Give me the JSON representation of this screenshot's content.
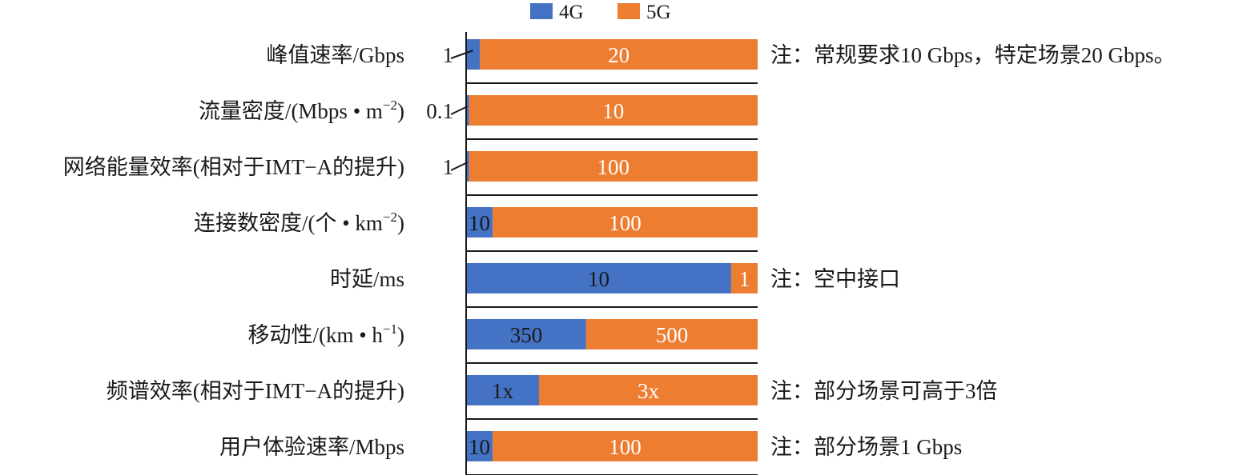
{
  "chart_data": {
    "type": "bar",
    "orientation": "horizontal",
    "stacked": "percent",
    "legend_position": "top",
    "grid": false,
    "series": [
      {
        "name": "4G",
        "color": "#4472c4",
        "values": [
          1,
          0.1,
          1,
          10,
          10,
          350,
          1,
          10
        ],
        "labels": [
          "1",
          "0.1",
          "1",
          "10",
          "10",
          "350",
          "1x",
          "10"
        ]
      },
      {
        "name": "5G",
        "color": "#ed7d31",
        "values": [
          20,
          10,
          100,
          100,
          1,
          500,
          3,
          100
        ],
        "labels": [
          "20",
          "10",
          "100",
          "100",
          "1",
          "500",
          "3x",
          "100"
        ]
      }
    ],
    "categories": [
      {
        "main": "峰值速率/Gbps",
        "sup": "",
        "tail": ""
      },
      {
        "main": "流量密度/(Mbps • m",
        "sup": "−2",
        "tail": ")"
      },
      {
        "main": "网络能量效率(相对于IMT−A的提升)",
        "sup": "",
        "tail": ""
      },
      {
        "main": "连接数密度/(个 • km",
        "sup": "−2",
        "tail": ")"
      },
      {
        "main": "时延/ms",
        "sup": "",
        "tail": ""
      },
      {
        "main": "移动性/(km • h",
        "sup": "−1",
        "tail": ")"
      },
      {
        "main": "频谱效率(相对于IMT−A的提升)",
        "sup": "",
        "tail": ""
      },
      {
        "main": "用户体验速率/Mbps",
        "sup": "",
        "tail": ""
      }
    ],
    "notes": [
      "注：常规要求10 Gbps，特定场景20 Gbps。",
      "",
      "",
      "",
      "注：空中接口",
      "",
      "注：部分场景可高于3倍",
      "注：部分场景1 Gbps"
    ]
  }
}
